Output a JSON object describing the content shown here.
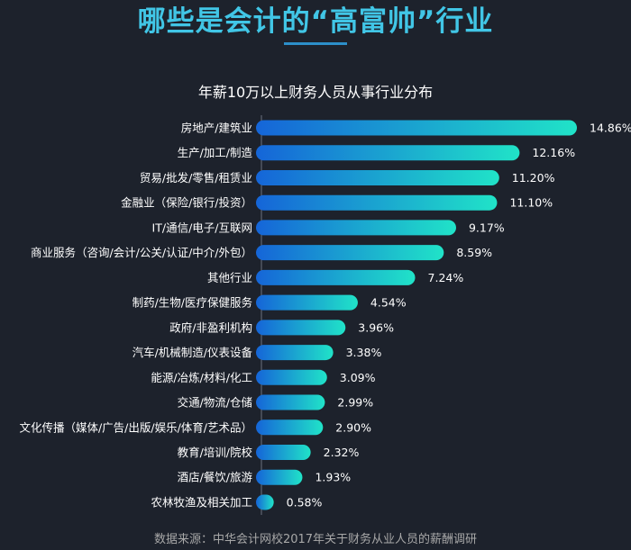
{
  "header": {
    "title": "哪些是会计的“高富帅”行业"
  },
  "footer": {
    "source": "数据来源：中华会计网校2017年关于财务从业人员的薪酬调研"
  },
  "chart_data": {
    "type": "bar",
    "orientation": "horizontal",
    "title": "年薪10万以上财务人员从事行业分布",
    "xlabel": "",
    "ylabel": "",
    "categories": [
      "房地产/建筑业",
      "生产/加工/制造",
      "贸易/批发/零售/租赁业",
      "金融业（保险/银行/投资）",
      "IT/通信/电子/互联网",
      "商业服务（咨询/会计/公关/认证/中介/外包）",
      "其他行业",
      "制药/生物/医疗保健服务",
      "政府/非盈利机构",
      "汽车/机械制造/仪表设备",
      "能源/冶炼/材料/化工",
      "交通/物流/仓储",
      "文化传播（媒体/广告/出版/娱乐/体育/艺术品）",
      "教育/培训/院校",
      "酒店/餐饮/旅游",
      "农林牧渔及相关加工"
    ],
    "values": [
      14.86,
      12.16,
      11.2,
      11.1,
      9.17,
      8.59,
      7.24,
      4.54,
      3.96,
      3.38,
      3.09,
      2.99,
      2.9,
      2.32,
      1.93,
      0.58
    ],
    "value_labels": [
      "14.86%",
      "12.16%",
      "11.20%",
      "11.10%",
      "9.17%",
      "8.59%",
      "7.24%",
      "4.54%",
      "3.96%",
      "3.38%",
      "3.09%",
      "2.99%",
      "2.90%",
      "2.32%",
      "1.93%",
      "0.58%"
    ],
    "xlim": [
      0,
      14.86
    ],
    "grid": false,
    "colors": {
      "bar_start": "#1565d8",
      "bar_end": "#20e3c8",
      "axis": "#6b7280",
      "title_accent": "#41c6e6",
      "background": "#1d222c"
    }
  }
}
